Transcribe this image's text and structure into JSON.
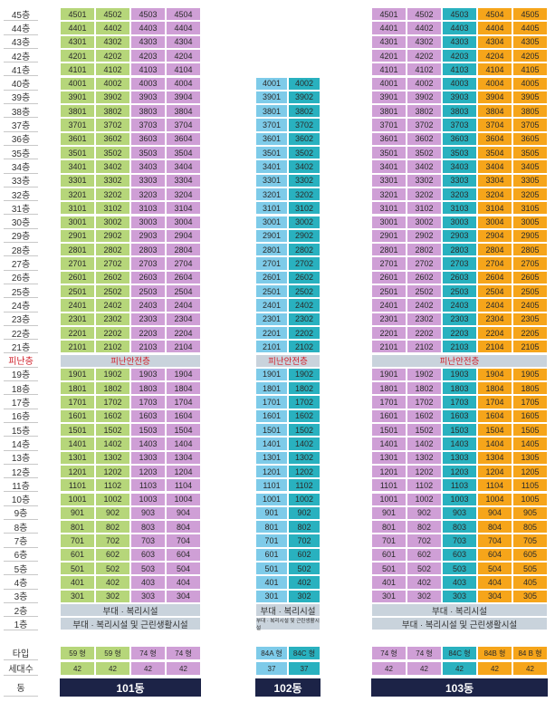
{
  "colors": {
    "green": "#b6d67a",
    "purple": "#cf9fd6",
    "sky": "#7ecbe9",
    "teal": "#29b1bf",
    "orange": "#f6a51a",
    "banner": "#c9d3dc",
    "navy": "#1c2347",
    "refuge_text": "#d0202a"
  },
  "floor_labels_upper": [
    "45층",
    "44층",
    "43층",
    "42층",
    "41층",
    "40층",
    "39층",
    "38층",
    "37층",
    "36층",
    "35층",
    "34층",
    "33층",
    "32층",
    "31층",
    "30층",
    "29층",
    "28층",
    "27층",
    "26층",
    "25층",
    "24층",
    "23층",
    "22층",
    "21층"
  ],
  "refuge_label": "피난층",
  "floor_labels_lower": [
    "19층",
    "18층",
    "17층",
    "16층",
    "15층",
    "14층",
    "13층",
    "12층",
    "11층",
    "10층",
    "9층",
    "8층",
    "7층",
    "6층",
    "5층",
    "4층",
    "3층",
    "2층",
    "1층"
  ],
  "bottom_labels": {
    "type": "타입",
    "households": "세대수",
    "dong": "동"
  },
  "buildings": [
    {
      "name": "101동",
      "top_floor": 45,
      "unit_colors": [
        "green",
        "green",
        "purple",
        "purple"
      ],
      "refuge_text": "피난안전층",
      "floor2_text": "부대 · 복리시설",
      "floor1_text": "부대 · 복리시설 및 근린생활시설",
      "types": [
        "59 형",
        "59 형",
        "74 형",
        "74 형"
      ],
      "households": [
        "42",
        "42",
        "42",
        "42"
      ]
    },
    {
      "name": "102동",
      "top_floor": 40,
      "unit_colors": [
        "sky",
        "teal"
      ],
      "refuge_text": "피난안전층",
      "floor2_text": "부대 · 복리시설",
      "floor1_text": "부대 · 복리시설 및 근린생활시설",
      "types": [
        "84A 형",
        "84C 형"
      ],
      "households": [
        "37",
        "37"
      ]
    },
    {
      "name": "103동",
      "top_floor": 45,
      "unit_colors": [
        "purple",
        "purple",
        "teal",
        "orange",
        "orange"
      ],
      "refuge_text": "피난안전층",
      "floor2_text": "부대 · 복리시설",
      "floor1_text": "부대 · 복리시설 및 근린생활시설",
      "types": [
        "74 형",
        "74 형",
        "84C 형",
        "84B 형",
        "84 B 형"
      ],
      "households": [
        "42",
        "42",
        "42",
        "42",
        "42"
      ]
    }
  ]
}
